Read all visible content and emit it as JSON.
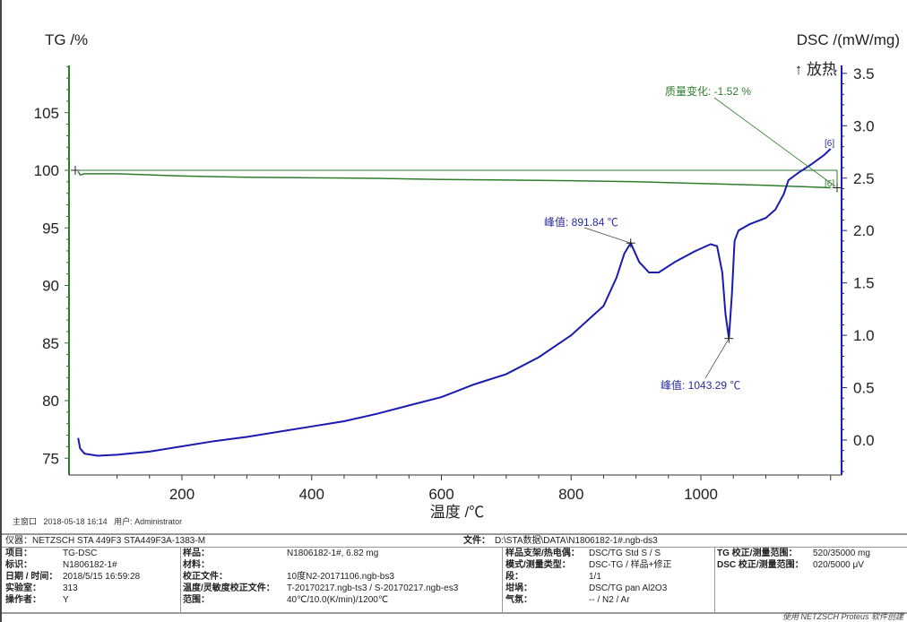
{
  "chart_data": {
    "type": "line",
    "xlabel": "温度 /℃",
    "ylabel_left": "TG /%",
    "ylabel_right": "DSC /(mW/mg)",
    "exo_label": "↑ 放热",
    "xlim": [
      35,
      1220
    ],
    "ylim_left": [
      74,
      109
    ],
    "ylim_right": [
      -0.35,
      3.6
    ],
    "x_ticks": [
      200,
      400,
      600,
      800,
      1000
    ],
    "y_left_ticks": [
      75,
      80,
      85,
      90,
      95,
      100,
      105
    ],
    "y_right_ticks": [
      "0.0",
      "0.5",
      "1.0",
      "1.5",
      "2.0",
      "2.5",
      "3.0",
      "3.5"
    ],
    "series": [
      {
        "name": "TG",
        "axis": "left",
        "color": "#2e7d2e",
        "x": [
          40,
          43,
          50,
          100,
          150,
          200,
          300,
          400,
          500,
          600,
          700,
          800,
          900,
          1000,
          1100,
          1200
        ],
        "y": [
          99.9,
          99.6,
          99.7,
          99.7,
          99.6,
          99.5,
          99.4,
          99.35,
          99.3,
          99.2,
          99.15,
          99.1,
          99.0,
          98.85,
          98.7,
          98.48
        ]
      },
      {
        "name": "DSC",
        "axis": "right",
        "color": "#1a1ab0",
        "x": [
          40,
          43,
          50,
          70,
          100,
          150,
          200,
          250,
          300,
          350,
          400,
          450,
          500,
          550,
          600,
          650,
          700,
          750,
          800,
          850,
          870,
          882,
          891.84,
          905,
          920,
          935,
          960,
          990,
          1015,
          1025,
          1033,
          1038,
          1043.29,
          1048,
          1052,
          1058,
          1075,
          1100,
          1115,
          1128,
          1135,
          1150,
          1170,
          1190,
          1200
        ],
        "y": [
          0.02,
          -0.08,
          -0.13,
          -0.15,
          -0.14,
          -0.11,
          -0.06,
          -0.01,
          0.03,
          0.08,
          0.13,
          0.18,
          0.25,
          0.33,
          0.41,
          0.53,
          0.63,
          0.79,
          1.0,
          1.28,
          1.55,
          1.78,
          1.88,
          1.7,
          1.6,
          1.6,
          1.7,
          1.8,
          1.87,
          1.85,
          1.6,
          1.2,
          0.97,
          1.4,
          1.9,
          2.0,
          2.06,
          2.12,
          2.2,
          2.35,
          2.48,
          2.55,
          2.63,
          2.72,
          2.78
        ]
      }
    ],
    "annotations": {
      "mass_change": "质量变化: -1.52 %",
      "peak1": "峰值: 891.84 ℃",
      "peak2": "峰值: 1043.29 ℃",
      "seg_marker_dsc": "[6]",
      "seg_marker_tg": "[6]"
    }
  },
  "meta": {
    "window": "主窗口",
    "datetime": "2018-05-18 16:14",
    "user": "用户: Administrator"
  },
  "info": {
    "instrument": "仪器：NETZSCH STA 449F3 STA449F3A-1383-M",
    "file_label": "文件：",
    "file": "D:\\STA数据\\DATA\\N1806182-1#.ngb-ds3",
    "rows": [
      [
        "项目：",
        "TG-DSC"
      ],
      [
        "标识：",
        "N1806182-1#"
      ],
      [
        "日期 / 时间：",
        "2018/5/15 16:59:28"
      ],
      [
        "实验室：",
        "313"
      ],
      [
        "操作者：",
        "Y"
      ]
    ],
    "rows2": [
      [
        "样品：",
        "N1806182-1#, 6.82 mg"
      ],
      [
        "材料：",
        ""
      ],
      [
        "校正文件：",
        "10度N2-20171106.ngb-bs3"
      ],
      [
        "温度/灵敏度校正文件：",
        "T-20170217.ngb-ts3 / S-20170217.ngb-es3"
      ],
      [
        "范围：",
        "40℃/10.0(K/min)/1200℃"
      ]
    ],
    "rows3": [
      [
        "样品支架/热电偶：",
        "DSC/TG Std S / S"
      ],
      [
        "模式/测量类型：",
        "DSC-TG / 样品+修正"
      ],
      [
        "段：",
        "1/1"
      ],
      [
        "坩埚：",
        "DSC/TG pan Al2O3"
      ],
      [
        "气氛：",
        "-- / N2 / Ar"
      ]
    ],
    "rows4": [
      [
        "TG 校正/测量范围：",
        "520/35000 mg"
      ],
      [
        "DSC 校正/测量范围：",
        "020/5000 μV"
      ]
    ],
    "footer": "使用 NETZSCH Proteus 软件创建"
  }
}
